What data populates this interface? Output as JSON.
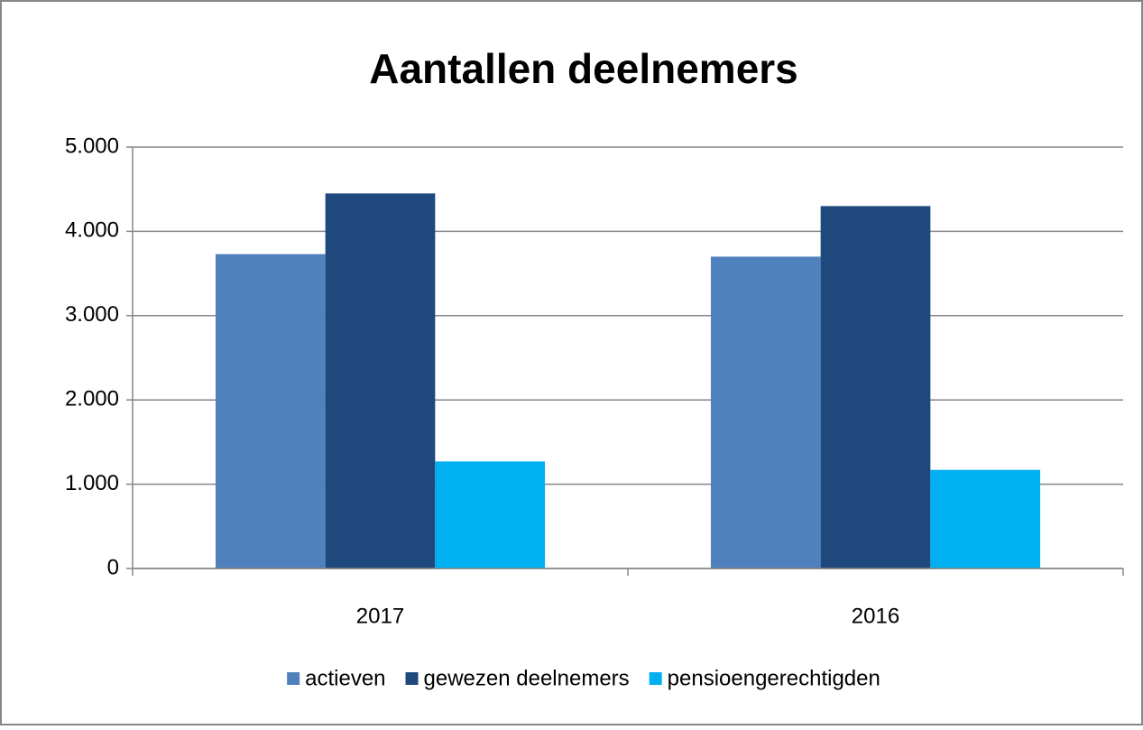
{
  "chart_data": {
    "type": "bar",
    "title": "Aantallen deelnemers",
    "categories": [
      "2017",
      "2016"
    ],
    "series": [
      {
        "name": "actieven",
        "color": "#4f81bd",
        "values": [
          3730,
          3700
        ]
      },
      {
        "name": "gewezen deelnemers",
        "color": "#1f497d",
        "values": [
          4450,
          4300
        ]
      },
      {
        "name": "pensioengerechtigden",
        "color": "#00b0f0",
        "values": [
          1270,
          1170
        ]
      }
    ],
    "ylim": [
      0,
      5000
    ],
    "yticks": [
      0,
      {
        "value": 1000,
        "label": "1.000"
      },
      {
        "value": 2000,
        "label": "2.000"
      },
      {
        "value": 3000,
        "label": "3.000"
      },
      {
        "value": 4000,
        "label": "4.000"
      },
      {
        "value": 5000,
        "label": "5.000"
      }
    ],
    "grid": true,
    "legend": "bottom"
  }
}
